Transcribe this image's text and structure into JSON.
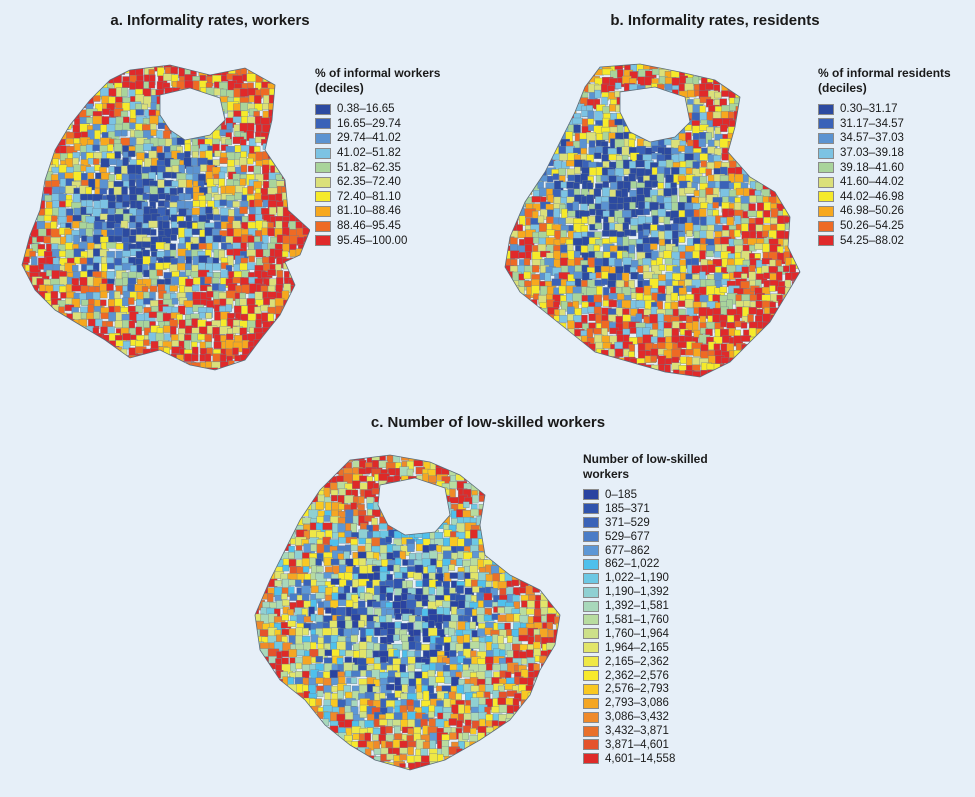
{
  "panel_a": {
    "title": "a. Informality rates, workers",
    "legend_title": "% of informal workers (deciles)",
    "legend": [
      {
        "label": "0.38–16.65",
        "color": "#2c4aa0"
      },
      {
        "label": "16.65–29.74",
        "color": "#3a62b8"
      },
      {
        "label": "29.74–41.02",
        "color": "#5b93d1"
      },
      {
        "label": "41.02–51.82",
        "color": "#7cc3e3"
      },
      {
        "label": "51.82–62.35",
        "color": "#a9d49b"
      },
      {
        "label": "62.35–72.40",
        "color": "#dbe07a"
      },
      {
        "label": "72.40–81.10",
        "color": "#f6ea2a"
      },
      {
        "label": "81.10–88.46",
        "color": "#f7a81e"
      },
      {
        "label": "88.46–95.45",
        "color": "#ee6a24"
      },
      {
        "label": "95.45–100.00",
        "color": "#e0292a"
      }
    ]
  },
  "panel_b": {
    "title": "b. Informality rates, residents",
    "legend_title": "% of informal residents (deciles)",
    "legend": [
      {
        "label": "0.30–31.17",
        "color": "#2c4aa0"
      },
      {
        "label": "31.17–34.57",
        "color": "#3a62b8"
      },
      {
        "label": "34.57–37.03",
        "color": "#5b93d1"
      },
      {
        "label": "37.03–39.18",
        "color": "#7cc3e3"
      },
      {
        "label": "39.18–41.60",
        "color": "#a9d49b"
      },
      {
        "label": "41.60–44.02",
        "color": "#dbe07a"
      },
      {
        "label": "44.02–46.98",
        "color": "#f6ea2a"
      },
      {
        "label": "46.98–50.26",
        "color": "#f7a81e"
      },
      {
        "label": "50.26–54.25",
        "color": "#ee6a24"
      },
      {
        "label": "54.25–88.02",
        "color": "#e0292a"
      }
    ]
  },
  "panel_c": {
    "title": "c. Number of low-skilled workers",
    "legend_title": "Number of low-skilled workers",
    "legend": [
      {
        "label": "0–185",
        "color": "#2a43a0"
      },
      {
        "label": "185–371",
        "color": "#2f53ad"
      },
      {
        "label": "371–529",
        "color": "#3a63b8"
      },
      {
        "label": "529–677",
        "color": "#4a7cc6"
      },
      {
        "label": "677–862",
        "color": "#5d97d5"
      },
      {
        "label": "862–1,022",
        "color": "#4fc0ec"
      },
      {
        "label": "1,022–1,190",
        "color": "#6cc8e4"
      },
      {
        "label": "1,190–1,392",
        "color": "#8fd0d2"
      },
      {
        "label": "1,392–1,581",
        "color": "#a8d8bb"
      },
      {
        "label": "1,581–1,760",
        "color": "#b8dca0"
      },
      {
        "label": "1,760–1,964",
        "color": "#cde08a"
      },
      {
        "label": "1,964–2,165",
        "color": "#e2e56a"
      },
      {
        "label": "2,165–2,362",
        "color": "#efe845"
      },
      {
        "label": "2,362–2,576",
        "color": "#f8ea2c"
      },
      {
        "label": "2,576–2,793",
        "color": "#f9c822"
      },
      {
        "label": "2,793–3,086",
        "color": "#f5a623"
      },
      {
        "label": "3,086–3,432",
        "color": "#ef8a2a"
      },
      {
        "label": "3,432–3,871",
        "color": "#e9702a"
      },
      {
        "label": "3,871–4,601",
        "color": "#e4532b"
      },
      {
        "label": "4,601–14,558",
        "color": "#de2a28"
      }
    ]
  }
}
